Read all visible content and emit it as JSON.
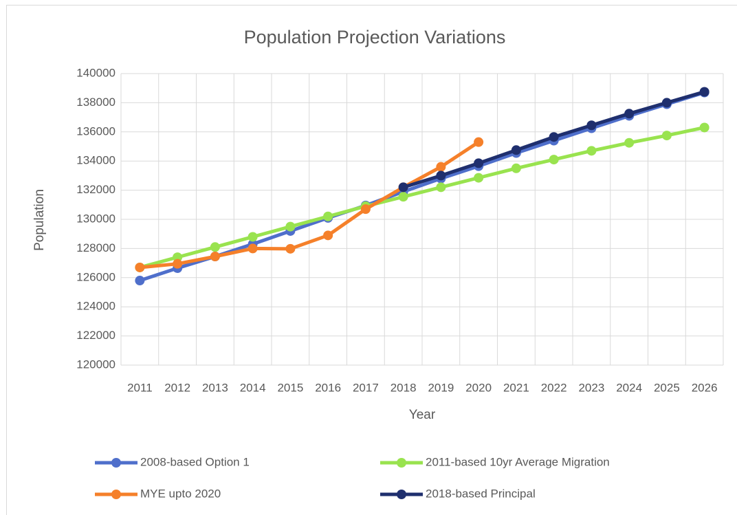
{
  "chart_data": {
    "type": "line",
    "title": "Population Projection Variations",
    "x_label": "Year",
    "y_label": "Population",
    "categories": [
      "2011",
      "2012",
      "2013",
      "2014",
      "2015",
      "2016",
      "2017",
      "2018",
      "2019",
      "2020",
      "2021",
      "2022",
      "2023",
      "2024",
      "2025",
      "2026"
    ],
    "series": [
      {
        "name": "2008-based Option 1",
        "color": "#4f6fcb",
        "values": [
          125800,
          126650,
          127450,
          128300,
          129200,
          130100,
          130950,
          131900,
          132800,
          133650,
          134550,
          135400,
          136250,
          137100,
          137900,
          138700
        ]
      },
      {
        "name": "2011-based 10yr Average Migration",
        "color": "#99e34f",
        "values": [
          126700,
          127400,
          128100,
          128800,
          129500,
          130200,
          130900,
          131550,
          132200,
          132850,
          133500,
          134100,
          134700,
          135250,
          135750,
          136300
        ]
      },
      {
        "name": "MYE upto 2020",
        "color": "#f5802a",
        "values": [
          126700,
          126950,
          127450,
          128000,
          127980,
          128900,
          130700,
          132200,
          133600,
          135300,
          null,
          null,
          null,
          null,
          null,
          null
        ]
      },
      {
        "name": "2018-based Principal",
        "color": "#1f2f6e",
        "values": [
          null,
          null,
          null,
          null,
          null,
          null,
          null,
          132200,
          133000,
          133850,
          134750,
          135650,
          136450,
          137250,
          138000,
          138750
        ]
      }
    ],
    "ylim": [
      120000,
      140000
    ],
    "yticks": [
      120000,
      122000,
      124000,
      126000,
      128000,
      130000,
      132000,
      134000,
      136000,
      138000,
      140000
    ],
    "grid": true,
    "legend": "bottom"
  }
}
